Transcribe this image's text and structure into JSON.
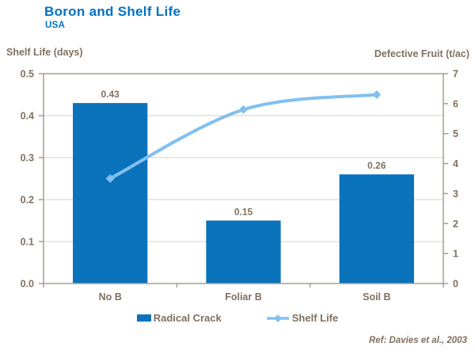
{
  "footer": {
    "reference": "Ref: Davies et al., 2003"
  },
  "colors": {
    "title": "#0071C5",
    "text": "#7F7060",
    "bar": "#0B72BC",
    "line": "#82C0EF",
    "grid": "#D6D0C8",
    "border": "#A79E91",
    "background": "#FFFFFF"
  },
  "chart_data": {
    "type": "bar",
    "title": "Boron and Shelf Life",
    "subtitle": "USA",
    "categories": [
      "No B",
      "Foliar B",
      "Soil B"
    ],
    "series": [
      {
        "name": "Radical Crack",
        "type": "bar",
        "axis": "left",
        "values": [
          0.43,
          0.15,
          0.26
        ],
        "data_labels": [
          "0.43",
          "0.15",
          "0.26"
        ],
        "color": "#0B72BC"
      },
      {
        "name": "Shelf Life",
        "type": "line",
        "axis": "right",
        "values": [
          3.5,
          5.8,
          6.3
        ],
        "color": "#82C0EF"
      }
    ],
    "left_axis": {
      "label": "Shelf Life (days)",
      "min": 0,
      "max": 0.5,
      "tick_step": 0.1,
      "tick_labels": [
        "0.0",
        "0.1",
        "0.2",
        "0.3",
        "0.4",
        "0.5"
      ]
    },
    "right_axis": {
      "label": "Defective Fruit (t/ac)",
      "min": 0,
      "max": 7,
      "tick_step": 1,
      "tick_labels": [
        "0",
        "1",
        "2",
        "3",
        "4",
        "5",
        "6",
        "7"
      ]
    },
    "grid": true,
    "legend_position": "bottom"
  }
}
